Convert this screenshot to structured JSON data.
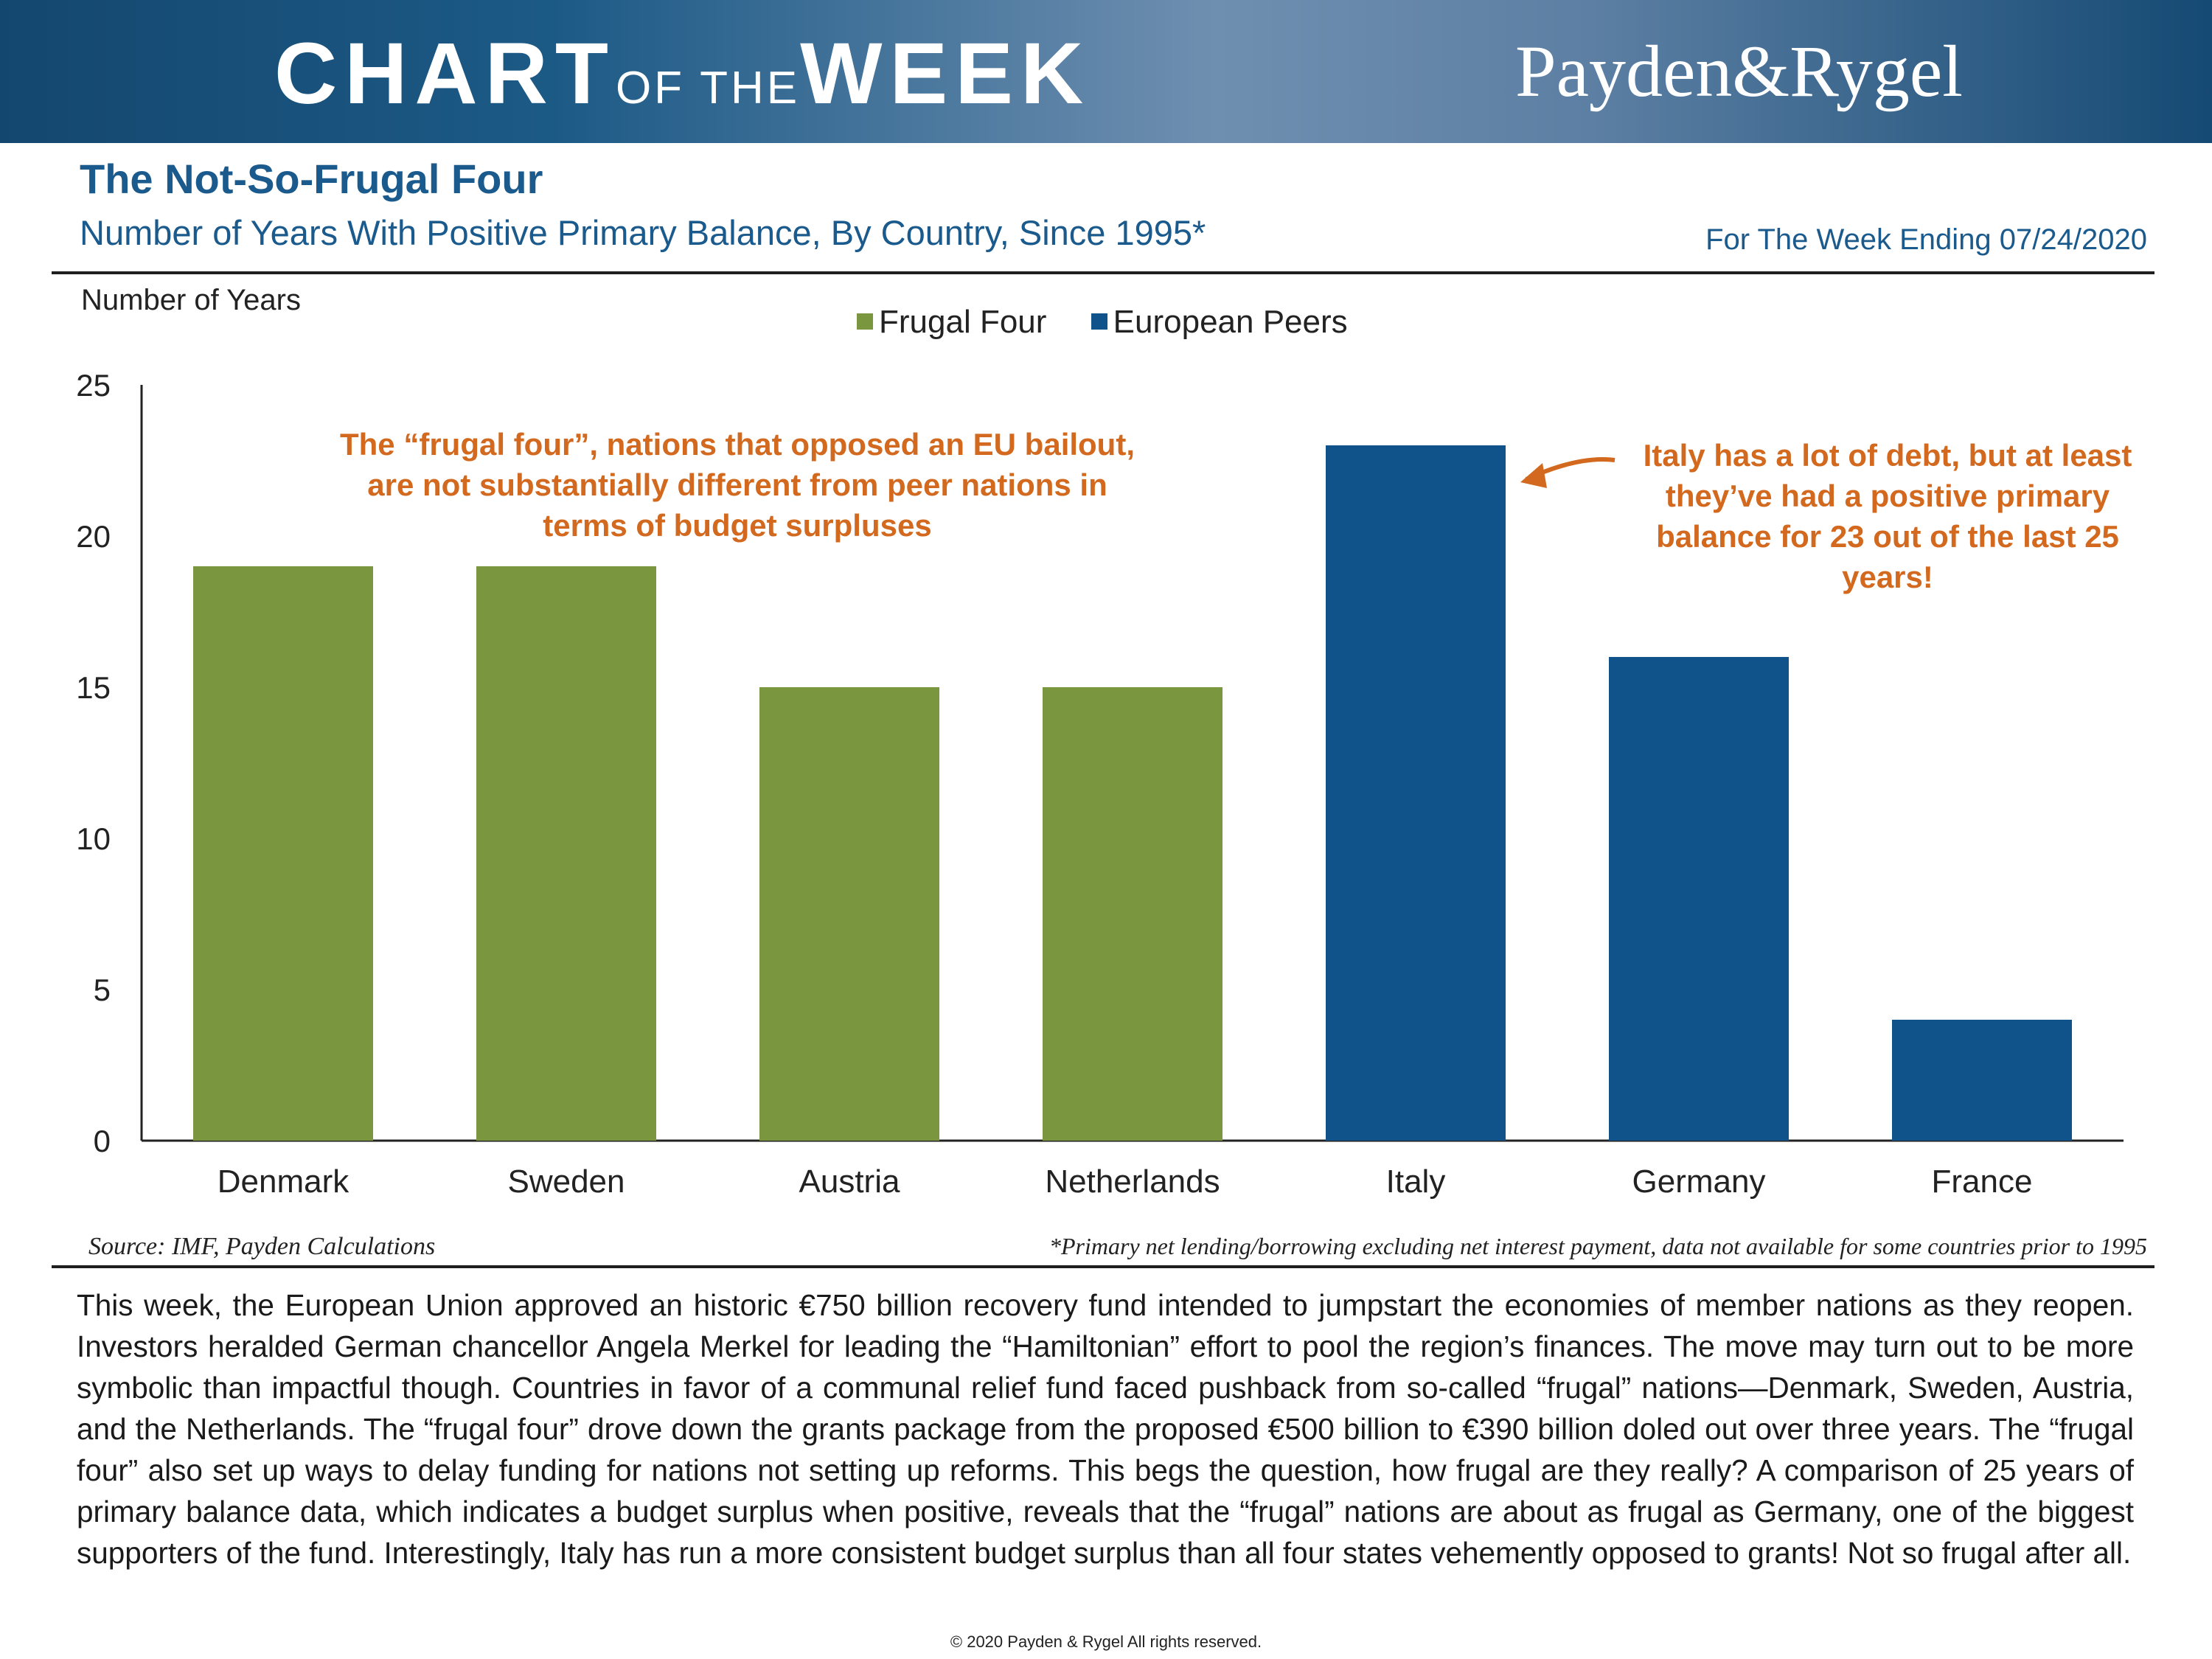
{
  "banner": {
    "title_part1": "CHART",
    "title_part2": "OF THE",
    "title_part3": "WEEK",
    "logo": "Payden&Rygel"
  },
  "header": {
    "title": "The Not-So-Frugal Four",
    "subtitle": "Number of Years With Positive Primary Balance, By Country, Since 1995*",
    "week_ending": "For The Week Ending 07/24/2020"
  },
  "colors": {
    "frugal": "#7a963e",
    "peers": "#10528a",
    "note": "#d2691e"
  },
  "chart_data": {
    "type": "bar",
    "title": "The Not-So-Frugal Four",
    "ylabel": "Number of Years",
    "xlabel": "",
    "ylim": [
      0,
      25
    ],
    "yticks": [
      0,
      5,
      10,
      15,
      20,
      25
    ],
    "categories": [
      "Denmark",
      "Sweden",
      "Austria",
      "Netherlands",
      "Italy",
      "Germany",
      "France"
    ],
    "values": [
      19,
      19,
      15,
      15,
      23,
      16,
      4
    ],
    "groups": [
      "Frugal Four",
      "Frugal Four",
      "Frugal Four",
      "Frugal Four",
      "European Peers",
      "European Peers",
      "European Peers"
    ],
    "legend": [
      {
        "name": "Frugal Four",
        "color": "#7a963e"
      },
      {
        "name": "European Peers",
        "color": "#10528a"
      }
    ],
    "legend_position": "top-center",
    "grid": false,
    "annotations": {
      "left": "The “frugal four”, nations that opposed an EU bailout, are not substantially different from peer nations in terms of budget surpluses",
      "right": "Italy has a lot of debt, but at least they’ve had a positive primary balance for 23 out of the last 25 years!"
    }
  },
  "footer": {
    "source": "Source: IMF, Payden Calculations",
    "footnote": "*Primary net lending/borrowing excluding net interest payment, data not available for some countries prior to 1995",
    "body": "This week, the European Union approved an historic €750 billion recovery fund intended to jumpstart the economies of member nations as they reopen. Investors heralded German chancellor Angela Merkel for leading the “Hamiltonian” effort to pool the region’s finances. The move may turn out to be more symbolic than impactful though. Countries in favor of a communal relief fund faced pushback from so-called “frugal” nations—Denmark, Sweden, Austria, and the Netherlands. The “frugal four” drove down the grants package from the proposed €500 billion to €390 billion doled out over three years. The “frugal four” also set up ways to delay funding for nations not setting up reforms. This begs the question, how frugal are they really? A comparison of 25 years of primary balance data, which indicates a budget surplus when positive, reveals that the “frugal” nations are about as frugal as Germany, one of the biggest supporters of the fund. Interestingly, Italy has run a more consistent budget surplus than all four states vehemently opposed to grants! Not so frugal after all.",
    "copyright": "© 2020 Payden & Rygel All rights reserved."
  }
}
